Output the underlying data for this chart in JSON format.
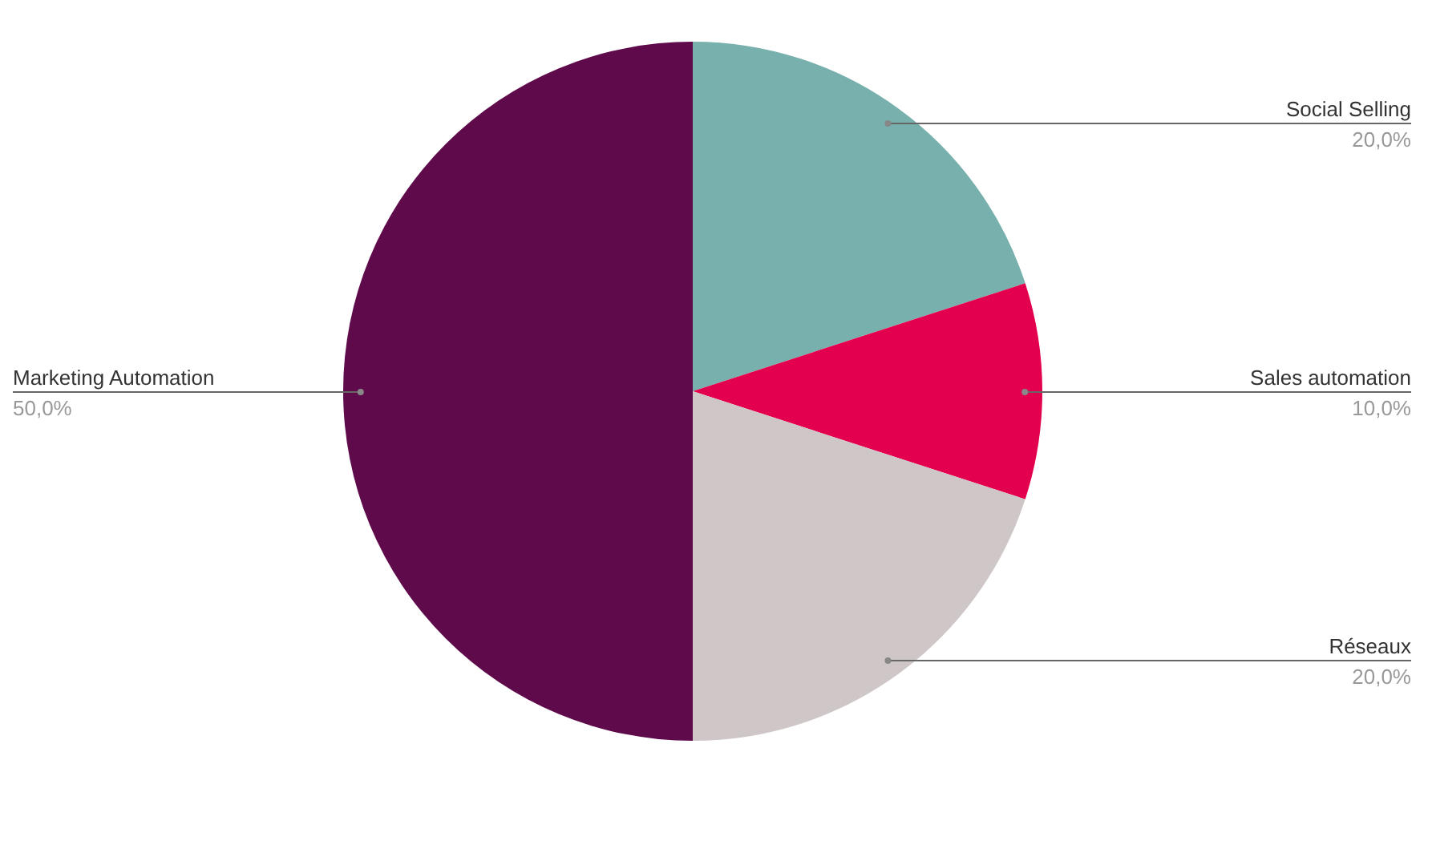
{
  "chart_data": {
    "type": "pie",
    "categories": [
      "Social Selling",
      "Sales automation",
      "Réseaux",
      "Marketing Automation"
    ],
    "values": [
      20,
      10,
      20,
      50
    ],
    "value_labels": [
      "20,0%",
      "10,0%",
      "20,0%",
      "50,0%"
    ],
    "colors": [
      "#77b0ac",
      "#e3004f",
      "#cfc6c7",
      "#5e0a4b"
    ],
    "legend": false
  }
}
